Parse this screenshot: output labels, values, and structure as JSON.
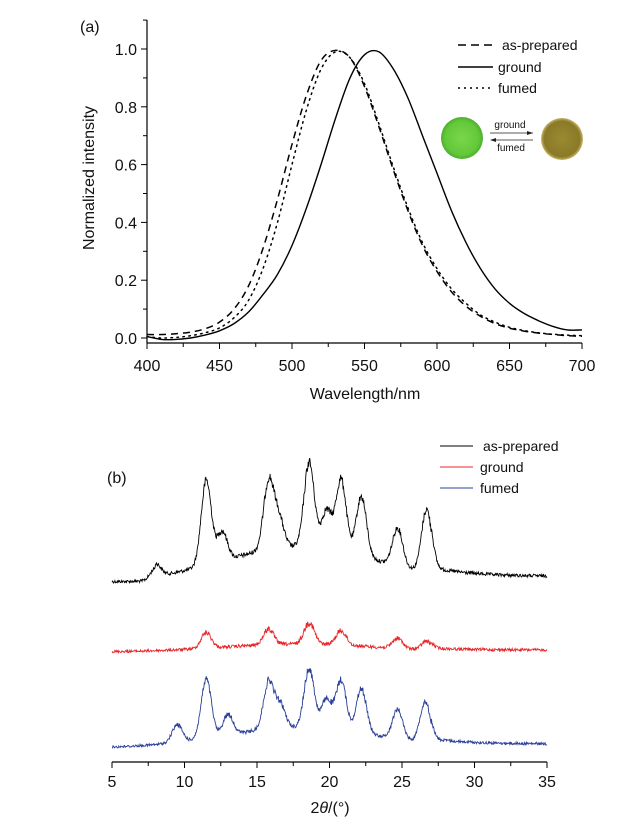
{
  "chart_data": [
    {
      "panel": "(a)",
      "type": "line",
      "title": "",
      "xlabel": "Wavelength/nm",
      "ylabel": "Normalized intensity",
      "xlim": [
        400,
        700
      ],
      "ylim": [
        0.0,
        1.0
      ],
      "xticks": [
        "400",
        "450",
        "500",
        "550",
        "600",
        "650",
        "700"
      ],
      "yticks": [
        "0.0",
        "0.2",
        "0.4",
        "0.6",
        "0.8",
        "1.0"
      ],
      "legend_position": "top-right",
      "inset": {
        "description": "photos of green (as-prepared) and olive (ground) powder with reversible arrows",
        "arrow_top_label": "ground",
        "arrow_bottom_label": "fumed",
        "left_color": "#6ccf3e",
        "right_color": "#8f7f2a"
      },
      "series": [
        {
          "name": "as-prepared",
          "style": "dashed",
          "color": "#000000",
          "peak_x": 532,
          "x": [
            400,
            410,
            420,
            430,
            440,
            450,
            460,
            470,
            480,
            490,
            500,
            510,
            520,
            530,
            540,
            550,
            560,
            570,
            580,
            590,
            600,
            610,
            620,
            630,
            640,
            650,
            660,
            670,
            680,
            690,
            700
          ],
          "y": [
            0.012,
            0.012,
            0.015,
            0.02,
            0.032,
            0.055,
            0.1,
            0.18,
            0.31,
            0.48,
            0.67,
            0.84,
            0.96,
            0.995,
            0.97,
            0.87,
            0.73,
            0.58,
            0.44,
            0.32,
            0.23,
            0.16,
            0.11,
            0.075,
            0.05,
            0.034,
            0.024,
            0.017,
            0.012,
            0.008,
            0.006
          ]
        },
        {
          "name": "ground",
          "style": "solid",
          "color": "#000000",
          "peak_x": 557,
          "x": [
            400,
            410,
            420,
            430,
            440,
            450,
            460,
            470,
            480,
            490,
            500,
            510,
            520,
            530,
            540,
            550,
            560,
            570,
            580,
            590,
            600,
            610,
            620,
            630,
            640,
            650,
            660,
            670,
            680,
            690,
            700
          ],
          "y": [
            0.005,
            -0.005,
            -0.005,
            0.0,
            0.01,
            0.025,
            0.05,
            0.09,
            0.15,
            0.22,
            0.32,
            0.45,
            0.6,
            0.76,
            0.9,
            0.98,
            0.99,
            0.93,
            0.83,
            0.7,
            0.57,
            0.44,
            0.33,
            0.24,
            0.17,
            0.12,
            0.085,
            0.06,
            0.04,
            0.028,
            0.028
          ]
        },
        {
          "name": "fumed",
          "style": "dotted",
          "color": "#000000",
          "peak_x": 534,
          "x": [
            400,
            410,
            420,
            430,
            440,
            450,
            460,
            470,
            480,
            490,
            500,
            510,
            520,
            530,
            540,
            550,
            560,
            570,
            580,
            590,
            600,
            610,
            620,
            630,
            640,
            650,
            660,
            670,
            680,
            690,
            700
          ],
          "y": [
            0.005,
            0.0,
            0.002,
            0.008,
            0.018,
            0.035,
            0.07,
            0.13,
            0.24,
            0.4,
            0.6,
            0.79,
            0.93,
            0.99,
            0.97,
            0.88,
            0.74,
            0.59,
            0.45,
            0.33,
            0.24,
            0.17,
            0.12,
            0.08,
            0.055,
            0.037,
            0.026,
            0.018,
            0.013,
            0.01,
            0.008
          ]
        }
      ]
    },
    {
      "panel": "(b)",
      "type": "line",
      "title": "",
      "xlabel": "2θ/(°)",
      "ylabel": "",
      "xlim": [
        5,
        35
      ],
      "xticks": [
        "5",
        "10",
        "15",
        "20",
        "25",
        "30",
        "35"
      ],
      "legend_position": "top-right",
      "note": "XRD patterns, vertically offset, arbitrary intensity",
      "series": [
        {
          "name": "as-prepared",
          "color": "#000000",
          "peaks_2theta": [
            8.0,
            11.5,
            12.6,
            15.8,
            16.5,
            18.6,
            19.8,
            20.8,
            22.2,
            24.7,
            26.7
          ],
          "peak_rel_intensity": [
            0.15,
            1.0,
            0.35,
            0.8,
            0.35,
            1.0,
            0.45,
            0.85,
            0.7,
            0.45,
            0.75
          ],
          "baseline_rel": 0.3
        },
        {
          "name": "ground",
          "color": "#e8262a",
          "peaks_2theta": [
            11.5,
            15.8,
            18.6,
            20.8,
            24.7,
            26.7
          ],
          "peak_rel_intensity": [
            0.55,
            0.55,
            0.75,
            0.5,
            0.35,
            0.3
          ],
          "baseline_rel": 0.2
        },
        {
          "name": "fumed",
          "color": "#2b3f98",
          "peaks_2theta": [
            9.5,
            11.5,
            13.0,
            15.8,
            16.6,
            18.6,
            19.8,
            20.8,
            22.2,
            24.7,
            26.6
          ],
          "peak_rel_intensity": [
            0.3,
            1.0,
            0.35,
            0.8,
            0.4,
            1.0,
            0.5,
            0.85,
            0.75,
            0.5,
            0.7
          ],
          "baseline_rel": 0.25
        }
      ]
    }
  ],
  "labels": {
    "panel_a": "(a)",
    "panel_b": "(b)",
    "a_xlabel": "Wavelength/nm",
    "a_ylabel": "Normalized intensity",
    "b_xlabel_prefix": "2",
    "b_xlabel_theta": "θ",
    "b_xlabel_suffix": "/(°)",
    "legend_a": [
      "as-prepared",
      "ground",
      "fumed"
    ],
    "legend_b": [
      "as-prepared",
      "ground",
      "fumed"
    ],
    "inset_top": "ground",
    "inset_bottom": "fumed"
  }
}
